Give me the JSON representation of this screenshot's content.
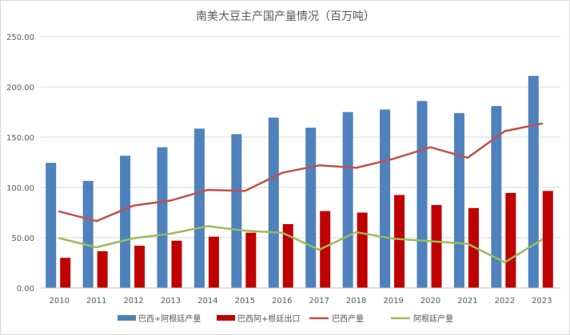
{
  "chart_data": {
    "type": "bar",
    "title": "南美大豆主产国产量情况（百万吨）",
    "categories": [
      "2010",
      "2011",
      "2012",
      "2013",
      "2014",
      "2015",
      "2016",
      "2017",
      "2018",
      "2019",
      "2020",
      "2021",
      "2022",
      "2023"
    ],
    "ylim": [
      0,
      250
    ],
    "yticks": [
      "0.00",
      "50.00",
      "100.00",
      "150.00",
      "200.00",
      "250.00"
    ],
    "grid": true,
    "legend_position": "bottom",
    "series": [
      {
        "name": "巴西+阿根廷产量",
        "kind": "bar",
        "color": "#4f81bd",
        "values": [
          124.5,
          106.5,
          131.5,
          140,
          158.5,
          153,
          169.5,
          159.5,
          175,
          177.5,
          186,
          174,
          181,
          211
        ]
      },
      {
        "name": "巴西阿+根廷出口",
        "kind": "bar",
        "color": "#c00000",
        "values": [
          30,
          36.5,
          42,
          47,
          51,
          55,
          63.5,
          76.5,
          75,
          92.5,
          82.5,
          79.5,
          94.5,
          96.5
        ]
      },
      {
        "name": "巴西产量",
        "kind": "line",
        "color": "#c0504d",
        "values": [
          76,
          66.5,
          82,
          87,
          97.5,
          96.5,
          114.5,
          122,
          119.5,
          128.5,
          140,
          129.5,
          156,
          163.5
        ]
      },
      {
        "name": "阿根廷产量",
        "kind": "line",
        "color": "#9bbb59",
        "values": [
          49.5,
          40.5,
          49.5,
          54,
          61.5,
          57,
          55,
          38,
          55.5,
          49,
          46.5,
          44,
          25.5,
          48
        ]
      }
    ]
  }
}
